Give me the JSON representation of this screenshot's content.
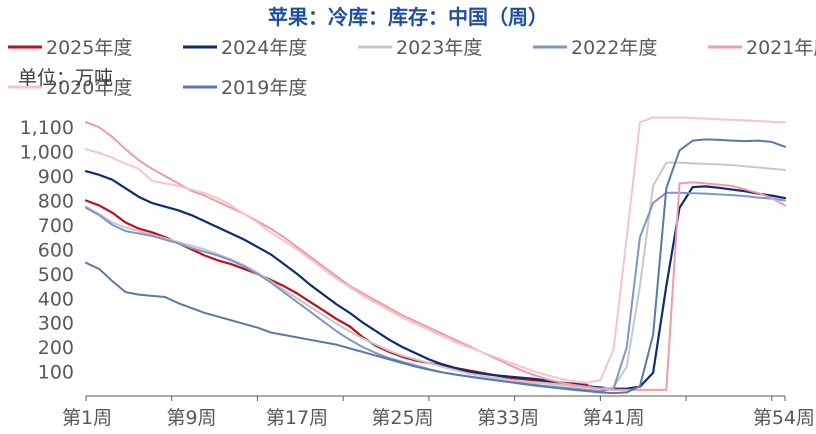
{
  "chart_data": {
    "type": "line",
    "title": "苹果：冷库：库存：中国（周）",
    "unit_label": "单位：万吨",
    "x": [
      "第1周",
      "第2周",
      "第3周",
      "第4周",
      "第5周",
      "第6周",
      "第7周",
      "第8周",
      "第9周",
      "第10周",
      "第11周",
      "第12周",
      "第13周",
      "第14周",
      "第15周",
      "第16周",
      "第17周",
      "第18周",
      "第19周",
      "第20周",
      "第21周",
      "第22周",
      "第23周",
      "第24周",
      "第25周",
      "第26周",
      "第27周",
      "第28周",
      "第29周",
      "第30周",
      "第31周",
      "第32周",
      "第33周",
      "第34周",
      "第35周",
      "第36周",
      "第37周",
      "第38周",
      "第39周",
      "第40周",
      "第41周",
      "第42周",
      "第43周",
      "第44周",
      "第45周",
      "第46周",
      "第47周",
      "第48周",
      "第49周",
      "第50周",
      "第51周",
      "第52周",
      "第53周",
      "第54周"
    ],
    "x_tick_labels": [
      "第1周",
      "第9周",
      "第17周",
      "第25周",
      "第33周",
      "第41周",
      "第54周"
    ],
    "y_ticks": [
      100,
      200,
      300,
      400,
      500,
      600,
      700,
      800,
      900,
      1000,
      1100
    ],
    "y_tick_labels": [
      "100",
      "200",
      "300",
      "400",
      "500",
      "600",
      "700",
      "800",
      "900",
      "1,000",
      "1,100"
    ],
    "ylim": [
      0,
      1150
    ],
    "xlim": [
      1,
      54
    ],
    "grid": false,
    "legend_position": "top",
    "series": [
      {
        "name": "2025年度",
        "color": "#c0101a",
        "values": [
          800,
          780,
          750,
          710,
          685,
          670,
          650,
          625,
          600,
          575,
          555,
          540,
          520,
          500,
          475,
          450,
          420,
          385,
          350,
          315,
          285,
          240,
          205,
          180,
          160,
          145,
          135,
          125,
          115,
          105,
          95,
          85,
          75,
          70,
          65,
          60,
          55,
          50,
          45,
          null,
          null,
          null,
          null,
          null,
          null,
          null,
          null,
          null,
          null,
          null,
          null,
          null,
          null,
          null
        ]
      },
      {
        "name": "2024年度",
        "color": "#0d2c74",
        "values": [
          920,
          905,
          885,
          850,
          815,
          790,
          775,
          760,
          740,
          715,
          690,
          665,
          640,
          610,
          580,
          540,
          500,
          455,
          415,
          375,
          340,
          300,
          265,
          230,
          200,
          175,
          150,
          130,
          115,
          100,
          92,
          85,
          80,
          75,
          70,
          62,
          55,
          48,
          40,
          35,
          30,
          30,
          38,
          95,
          450,
          770,
          855,
          858,
          852,
          845,
          838,
          828,
          820,
          810
        ]
      },
      {
        "name": "2023年度",
        "color": "#c8c8c8",
        "values": [
          775,
          745,
          710,
          690,
          675,
          660,
          645,
          630,
          615,
          600,
          580,
          560,
          535,
          505,
          470,
          435,
          400,
          365,
          330,
          295,
          265,
          235,
          210,
          185,
          165,
          150,
          135,
          120,
          105,
          92,
          82,
          74,
          67,
          60,
          55,
          50,
          45,
          40,
          35,
          30,
          35,
          120,
          450,
          860,
          955,
          955,
          952,
          950,
          948,
          945,
          940,
          935,
          930,
          925
        ]
      },
      {
        "name": "2022年度",
        "color": "#7f96c9",
        "values": [
          770,
          740,
          700,
          675,
          665,
          655,
          640,
          625,
          605,
          590,
          575,
          555,
          530,
          500,
          465,
          425,
          385,
          345,
          305,
          265,
          230,
          200,
          175,
          155,
          140,
          125,
          110,
          97,
          88,
          80,
          72,
          65,
          58,
          52,
          46,
          40,
          35,
          30,
          25,
          20,
          30,
          200,
          650,
          790,
          832,
          832,
          830,
          828,
          825,
          822,
          818,
          812,
          808,
          800
        ]
      },
      {
        "name": "2021年度",
        "color": "#f29aa6",
        "values": [
          1120,
          1100,
          1060,
          1010,
          965,
          930,
          900,
          870,
          840,
          820,
          795,
          770,
          745,
          715,
          685,
          650,
          610,
          570,
          530,
          490,
          450,
          420,
          390,
          360,
          330,
          305,
          280,
          255,
          230,
          205,
          180,
          155,
          130,
          105,
          85,
          68,
          55,
          45,
          38,
          30,
          25,
          25,
          25,
          25,
          25,
          870,
          875,
          870,
          865,
          860,
          845,
          830,
          810,
          780
        ]
      },
      {
        "name": "2020年度",
        "color": "#f3c6cc",
        "values": [
          1010,
          995,
          975,
          950,
          930,
          880,
          870,
          860,
          845,
          830,
          810,
          780,
          745,
          710,
          670,
          635,
          600,
          560,
          520,
          480,
          445,
          410,
          380,
          350,
          320,
          295,
          270,
          245,
          220,
          200,
          180,
          160,
          140,
          120,
          100,
          85,
          70,
          60,
          55,
          65,
          190,
          650,
          1120,
          1140,
          1140,
          1140,
          1138,
          1135,
          1132,
          1130,
          1128,
          1125,
          1122,
          1120
        ]
      },
      {
        "name": "2019年度",
        "color": "#5a78a8",
        "values": [
          545,
          520,
          470,
          425,
          415,
          410,
          405,
          380,
          360,
          340,
          325,
          310,
          295,
          280,
          260,
          250,
          240,
          230,
          220,
          210,
          195,
          180,
          165,
          150,
          135,
          120,
          108,
          97,
          88,
          80,
          72,
          65,
          58,
          50,
          43,
          37,
          31,
          25,
          20,
          15,
          12,
          15,
          40,
          250,
          850,
          1005,
          1045,
          1050,
          1048,
          1045,
          1043,
          1045,
          1040,
          1020
        ]
      }
    ]
  }
}
